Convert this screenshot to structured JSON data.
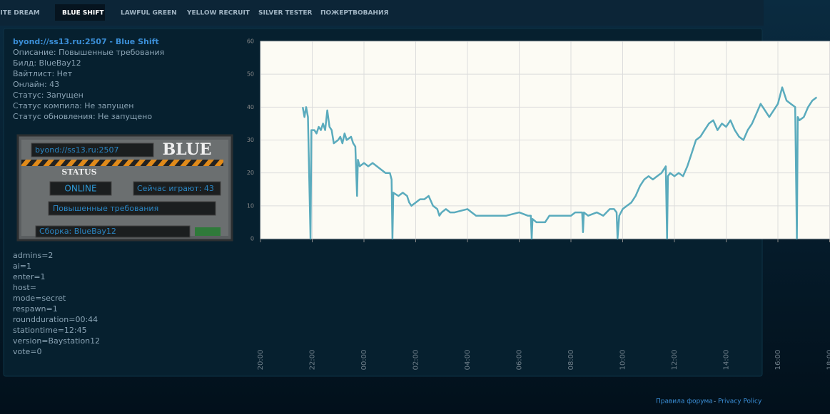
{
  "nav": {
    "tabs": [
      "HITE DREAM",
      "BLUE SHIFT",
      "LAWFUL GREEN",
      "YELLOW RECRUIT",
      "SILVER TESTER",
      "ПОЖЕРТВОВАНИЯ"
    ],
    "active": 1
  },
  "server": {
    "title": "byond://ss13.ru:2507 - Blue Shift",
    "lines": [
      "Описание: Повышенные требования",
      "Билд: BlueBay12",
      "Вайтлист: Нет",
      "Онлайн: 43",
      "Статус: Запущен",
      "Статус компила: Не запущен",
      "Статус обновления: Не запущено"
    ]
  },
  "banner": {
    "address": "byond://ss13.ru:2507",
    "name": "BLUE",
    "status_label": "STATUS",
    "status": "ONLINE",
    "players": "Сейчас играют: 43",
    "description": "Повышенные требования",
    "build": "Сборка: BlueBay12"
  },
  "config": [
    "admins=2",
    "ai=1",
    "enter=1",
    "host=",
    "mode=secret",
    "respawn=1",
    "roundduration=00:44",
    "stationtime=12:45",
    "version=Baystation12",
    "vote=0"
  ],
  "chart_data": {
    "type": "line",
    "color": "#5aabbd",
    "grid": true,
    "ylim": [
      0,
      60
    ],
    "yticks": [
      0,
      10,
      20,
      30,
      40,
      50,
      60
    ],
    "xlim": [
      "20:00",
      "18:00"
    ],
    "xticks": [
      "20:00",
      "22:00",
      "00:00",
      "02:00",
      "04:00",
      "06:00",
      "08:00",
      "10:00",
      "12:00",
      "14:00",
      "16:00",
      "18:00"
    ],
    "x": [
      "21:38",
      "21:42",
      "21:46",
      "21:50",
      "21:56",
      "21:58",
      "22:05",
      "22:10",
      "22:15",
      "22:20",
      "22:25",
      "22:30",
      "22:35",
      "22:40",
      "22:45",
      "22:50",
      "23:00",
      "23:05",
      "23:10",
      "23:15",
      "23:20",
      "23:30",
      "23:35",
      "23:40",
      "23:44",
      "23:46",
      "23:50",
      "00:00",
      "00:10",
      "00:20",
      "00:30",
      "00:40",
      "00:50",
      "01:00",
      "01:04",
      "01:06",
      "01:08",
      "01:20",
      "01:30",
      "01:40",
      "01:45",
      "01:50",
      "02:00",
      "02:10",
      "02:20",
      "02:30",
      "02:40",
      "02:50",
      "02:55",
      "03:00",
      "03:10",
      "03:20",
      "03:30",
      "04:00",
      "04:10",
      "04:20",
      "05:00",
      "05:30",
      "06:00",
      "06:20",
      "06:27",
      "06:29",
      "06:31",
      "06:40",
      "07:00",
      "07:10",
      "07:30",
      "08:00",
      "08:10",
      "08:26",
      "08:28",
      "08:30",
      "08:40",
      "09:00",
      "09:15",
      "09:30",
      "09:40",
      "09:46",
      "09:48",
      "09:52",
      "10:00",
      "10:10",
      "10:20",
      "10:30",
      "10:40",
      "10:50",
      "11:00",
      "11:10",
      "11:20",
      "11:30",
      "11:40",
      "11:43",
      "11:45",
      "11:50",
      "12:00",
      "12:10",
      "12:20",
      "12:30",
      "12:40",
      "12:50",
      "13:00",
      "13:10",
      "13:20",
      "13:30",
      "13:40",
      "13:50",
      "14:00",
      "14:10",
      "14:20",
      "14:30",
      "14:40",
      "14:50",
      "15:00",
      "15:10",
      "15:20",
      "15:30",
      "15:40",
      "15:50",
      "16:00",
      "16:10",
      "16:20",
      "16:30",
      "16:40",
      "16:44",
      "16:46",
      "16:50",
      "17:00",
      "17:10",
      "17:20",
      "17:30"
    ],
    "values": [
      40,
      37,
      40,
      37,
      0,
      33,
      33,
      32,
      34,
      33,
      35,
      33,
      39,
      34,
      33,
      29,
      30,
      31,
      29,
      32,
      30,
      31,
      29,
      28,
      13,
      24,
      22,
      23,
      22,
      23,
      22,
      21,
      20,
      20,
      18,
      0,
      14,
      13,
      14,
      13,
      11,
      10,
      11,
      12,
      12,
      13,
      10,
      9,
      7,
      8,
      9,
      8,
      8,
      9,
      8,
      7,
      7,
      7,
      8,
      7,
      7,
      0,
      6,
      5,
      5,
      7,
      7,
      7,
      8,
      8,
      2,
      8,
      7,
      8,
      7,
      9,
      9,
      8,
      0,
      7,
      9,
      10,
      11,
      13,
      16,
      18,
      19,
      18,
      19,
      20,
      22,
      0,
      19,
      20,
      19,
      20,
      19,
      22,
      26,
      30,
      31,
      33,
      35,
      36,
      33,
      35,
      34,
      36,
      33,
      31,
      30,
      33,
      35,
      38,
      41,
      39,
      37,
      39,
      41,
      46,
      42,
      41,
      40,
      0,
      37,
      36,
      37,
      40,
      42,
      43
    ]
  },
  "footer": {
    "links": [
      "Правила форума",
      "Privacy Policy"
    ],
    "separator": "-"
  }
}
